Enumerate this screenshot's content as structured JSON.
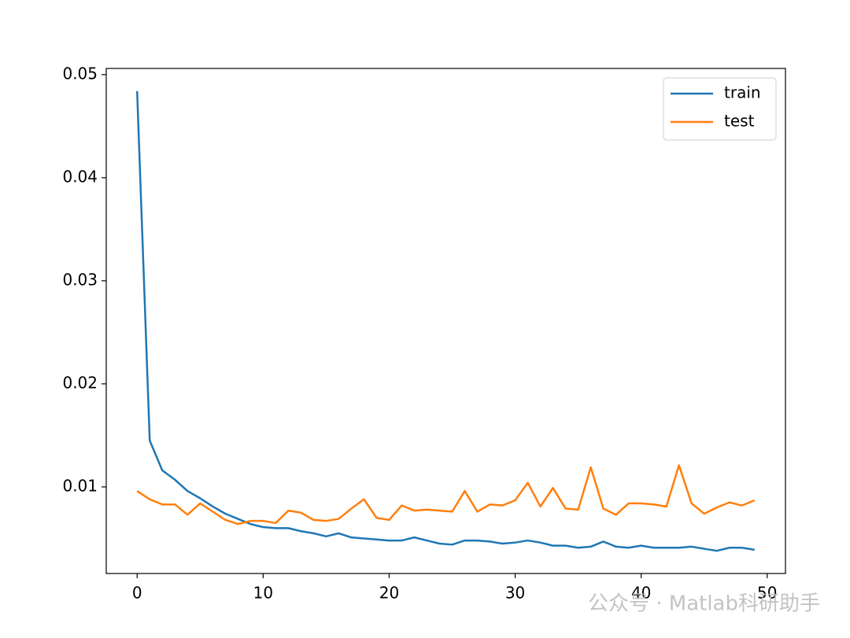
{
  "chart_data": {
    "type": "line",
    "x": [
      0,
      1,
      2,
      3,
      4,
      5,
      6,
      7,
      8,
      9,
      10,
      11,
      12,
      13,
      14,
      15,
      16,
      17,
      18,
      19,
      20,
      21,
      22,
      23,
      24,
      25,
      26,
      27,
      28,
      29,
      30,
      31,
      32,
      33,
      34,
      35,
      36,
      37,
      38,
      39,
      40,
      41,
      42,
      43,
      44,
      45,
      46,
      47,
      48,
      49
    ],
    "series": [
      {
        "name": "train",
        "color": "#1f77b4",
        "values": [
          0.0484,
          0.0145,
          0.0116,
          0.0107,
          0.0096,
          0.0089,
          0.0081,
          0.0074,
          0.0069,
          0.0064,
          0.0061,
          0.006,
          0.006,
          0.0057,
          0.0055,
          0.0052,
          0.0055,
          0.0051,
          0.005,
          0.0049,
          0.0048,
          0.0048,
          0.0051,
          0.0048,
          0.0045,
          0.0044,
          0.0048,
          0.0048,
          0.0047,
          0.0045,
          0.0046,
          0.0048,
          0.0046,
          0.0043,
          0.0043,
          0.0041,
          0.0042,
          0.0047,
          0.0042,
          0.0041,
          0.0043,
          0.0041,
          0.0041,
          0.0041,
          0.0042,
          0.004,
          0.0038,
          0.0041,
          0.0041,
          0.0039
        ]
      },
      {
        "name": "test",
        "color": "#ff7f0e",
        "values": [
          0.0096,
          0.0088,
          0.0083,
          0.0083,
          0.0073,
          0.0084,
          0.0076,
          0.0068,
          0.0064,
          0.0067,
          0.0067,
          0.0065,
          0.0077,
          0.0075,
          0.0068,
          0.0067,
          0.0069,
          0.0079,
          0.0088,
          0.007,
          0.0068,
          0.0082,
          0.0077,
          0.0078,
          0.0077,
          0.0076,
          0.0096,
          0.0076,
          0.0083,
          0.0082,
          0.0087,
          0.0104,
          0.0081,
          0.0099,
          0.0079,
          0.0078,
          0.0119,
          0.0079,
          0.0073,
          0.0084,
          0.0084,
          0.0083,
          0.0081,
          0.0121,
          0.0084,
          0.0074,
          0.008,
          0.0085,
          0.0082,
          0.0087
        ]
      }
    ],
    "xlim": [
      -2.45,
      51.45
    ],
    "xticks": [
      0,
      10,
      20,
      30,
      40,
      50
    ],
    "ylim": [
      0.0016,
      0.0506
    ],
    "yticks": [
      0.01,
      0.02,
      0.03,
      0.04,
      0.05
    ],
    "legend": "upper right",
    "watermark": "公众号 · Matlab科研助手"
  }
}
